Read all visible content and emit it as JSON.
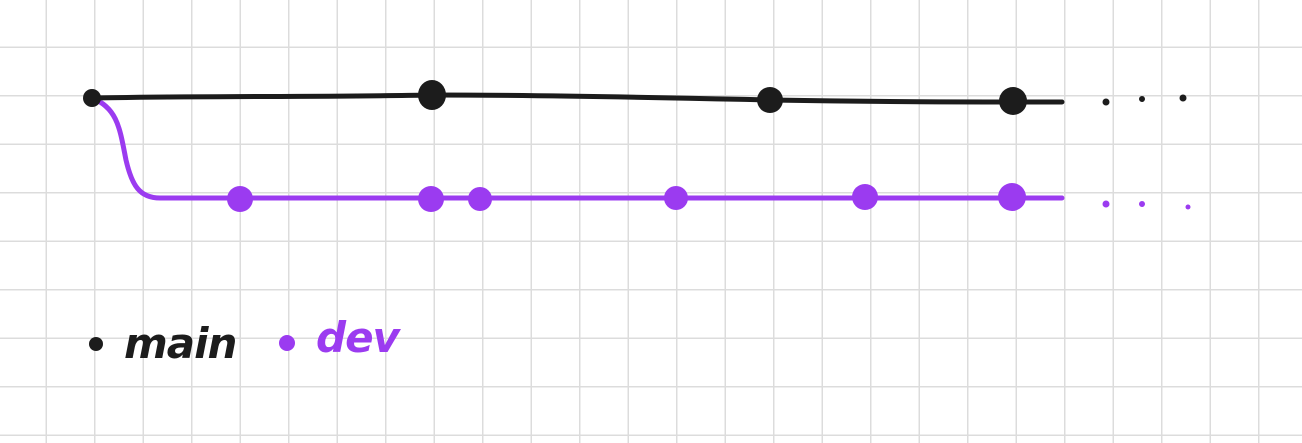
{
  "colors": {
    "main": "#1c1c1c",
    "dev": "#9b3bf0",
    "grid": "#dcdcdc",
    "background": "#ffffff"
  },
  "branches": [
    {
      "id": "main",
      "commit_count": 4,
      "continues": true
    },
    {
      "id": "dev",
      "branches_from": "main",
      "commit_count": 6,
      "continues": true
    }
  ],
  "legend": {
    "main_label": "main",
    "dev_label": "dev"
  }
}
